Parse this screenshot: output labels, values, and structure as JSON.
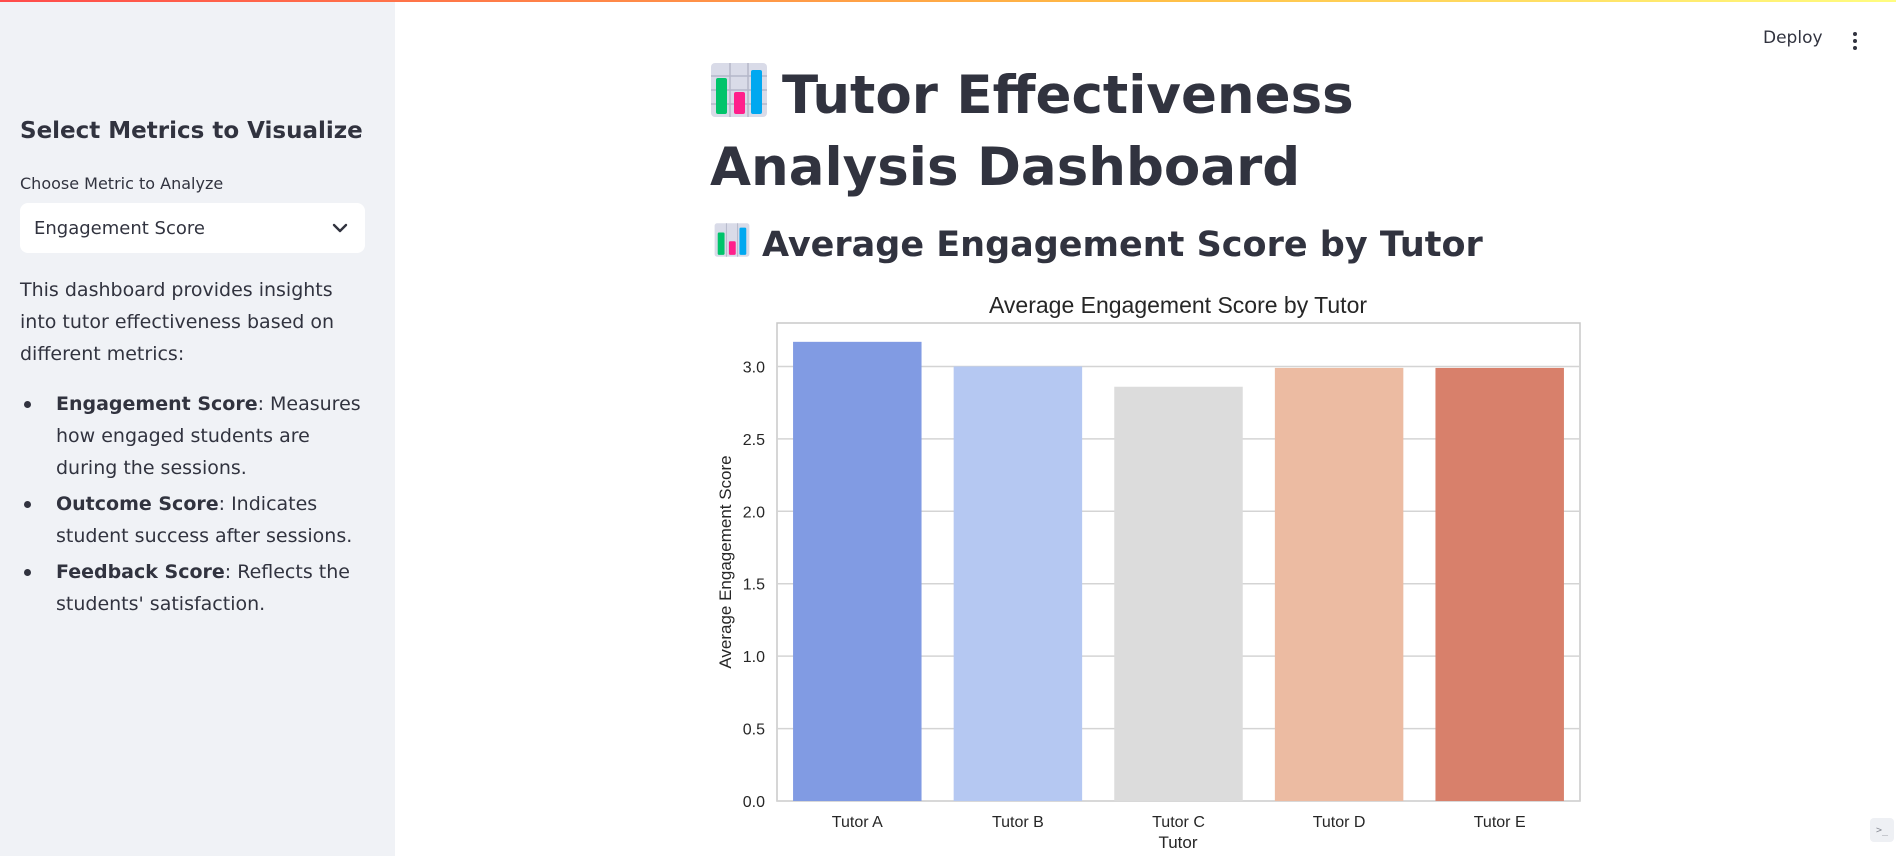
{
  "header": {
    "deploy_label": "Deploy",
    "menu_icon": "kebab-menu-icon"
  },
  "sidebar": {
    "heading": "Select Metrics to Visualize",
    "select_label": "Choose Metric to Analyze",
    "select_value": "Engagement Score",
    "intro": "This dashboard provides insights into tutor effectiveness based on different metrics:",
    "items": [
      {
        "term": "Engagement Score",
        "desc": ": Measures how engaged students are during the sessions."
      },
      {
        "term": "Outcome Score",
        "desc": ": Indicates student success after sessions."
      },
      {
        "term": "Feedback Score",
        "desc": ": Reflects the students' satisfaction."
      }
    ]
  },
  "main": {
    "title": "Tutor Effectiveness Analysis Dashboard",
    "subtitle": "Average Engagement Score by Tutor"
  },
  "chart_data": {
    "type": "bar",
    "title": "Average Engagement Score by Tutor",
    "xlabel": "Tutor",
    "ylabel": "Average Engagement Score",
    "categories": [
      "Tutor A",
      "Tutor B",
      "Tutor C",
      "Tutor D",
      "Tutor E"
    ],
    "values": [
      3.17,
      3.0,
      2.86,
      2.99,
      2.99
    ],
    "colors": [
      "#819be3",
      "#b5c8f2",
      "#dcdcdc",
      "#ecbba2",
      "#d8806b"
    ],
    "ylim": [
      0,
      3.3
    ],
    "yticks": [
      "0.0",
      "0.5",
      "1.0",
      "1.5",
      "2.0",
      "2.5",
      "3.0"
    ],
    "grid": true
  }
}
